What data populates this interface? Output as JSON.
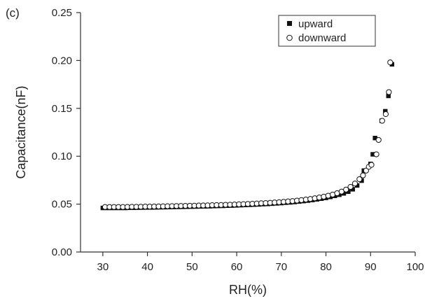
{
  "panel_label": "(c)",
  "chart_data": {
    "type": "scatter",
    "title": "",
    "xlabel": "RH(%)",
    "ylabel": "Capacitance(nF)",
    "xlim": [
      25,
      100
    ],
    "ylim": [
      0.0,
      0.25
    ],
    "x_ticks": [
      30,
      40,
      50,
      60,
      70,
      80,
      90,
      100
    ],
    "y_ticks": [
      0.0,
      0.05,
      0.1,
      0.15,
      0.2,
      0.25
    ],
    "x_tick_labels": [
      "30",
      "40",
      "50",
      "60",
      "70",
      "80",
      "90",
      "100"
    ],
    "y_tick_labels": [
      "0.00",
      "0.05",
      "0.10",
      "0.15",
      "0.20",
      "0.25"
    ],
    "grid": false,
    "legend_position": "top-right",
    "series": [
      {
        "name": "upward",
        "marker": "filled-square",
        "color": "#111111",
        "points": [
          [
            30,
            0.046
          ],
          [
            31,
            0.046
          ],
          [
            32,
            0.046
          ],
          [
            33,
            0.046
          ],
          [
            34,
            0.046
          ],
          [
            35,
            0.046
          ],
          [
            36,
            0.0462
          ],
          [
            37,
            0.0462
          ],
          [
            38,
            0.0463
          ],
          [
            39,
            0.0464
          ],
          [
            40,
            0.0465
          ],
          [
            41,
            0.0465
          ],
          [
            42,
            0.0466
          ],
          [
            43,
            0.0467
          ],
          [
            44,
            0.0468
          ],
          [
            45,
            0.0469
          ],
          [
            46,
            0.047
          ],
          [
            47,
            0.0471
          ],
          [
            48,
            0.0472
          ],
          [
            49,
            0.0473
          ],
          [
            50,
            0.0474
          ],
          [
            51,
            0.0475
          ],
          [
            52,
            0.0476
          ],
          [
            53,
            0.0477
          ],
          [
            54,
            0.0478
          ],
          [
            55,
            0.048
          ],
          [
            56,
            0.0481
          ],
          [
            57,
            0.0482
          ],
          [
            58,
            0.0484
          ],
          [
            59,
            0.0485
          ],
          [
            60,
            0.0487
          ],
          [
            61,
            0.0489
          ],
          [
            62,
            0.0491
          ],
          [
            63,
            0.0493
          ],
          [
            64,
            0.0495
          ],
          [
            65,
            0.0497
          ],
          [
            66,
            0.05
          ],
          [
            67,
            0.0502
          ],
          [
            68,
            0.0505
          ],
          [
            69,
            0.0508
          ],
          [
            70,
            0.0511
          ],
          [
            71,
            0.0515
          ],
          [
            72,
            0.0518
          ],
          [
            73,
            0.0522
          ],
          [
            74,
            0.0527
          ],
          [
            75,
            0.0532
          ],
          [
            76,
            0.0537
          ],
          [
            77,
            0.0543
          ],
          [
            78,
            0.055
          ],
          [
            79,
            0.0557
          ],
          [
            80,
            0.0565
          ],
          [
            81,
            0.0575
          ],
          [
            82,
            0.0586
          ],
          [
            83,
            0.0598
          ],
          [
            84,
            0.0612
          ],
          [
            85,
            0.063
          ],
          [
            86,
            0.0655
          ],
          [
            87,
            0.0695
          ],
          [
            88,
            0.0745
          ],
          [
            88.5,
            0.085
          ],
          [
            90,
            0.092
          ],
          [
            90.5,
            0.102
          ],
          [
            91,
            0.119
          ],
          [
            92.5,
            0.137
          ],
          [
            93.3,
            0.147
          ],
          [
            94,
            0.163
          ],
          [
            94.8,
            0.196
          ]
        ]
      },
      {
        "name": "downward",
        "marker": "open-circle",
        "color": "#111111",
        "points": [
          [
            30.5,
            0.047
          ],
          [
            31.5,
            0.047
          ],
          [
            32.5,
            0.047
          ],
          [
            33.5,
            0.047
          ],
          [
            34.5,
            0.047
          ],
          [
            35.5,
            0.0471
          ],
          [
            36.5,
            0.0472
          ],
          [
            37.5,
            0.0472
          ],
          [
            38.5,
            0.0473
          ],
          [
            39.5,
            0.0474
          ],
          [
            40.5,
            0.0474
          ],
          [
            41.5,
            0.0475
          ],
          [
            42.5,
            0.0476
          ],
          [
            43.5,
            0.0477
          ],
          [
            44.5,
            0.0478
          ],
          [
            45.5,
            0.0479
          ],
          [
            46.5,
            0.048
          ],
          [
            47.5,
            0.0481
          ],
          [
            48.5,
            0.0482
          ],
          [
            49.5,
            0.0483
          ],
          [
            50.5,
            0.0484
          ],
          [
            51.5,
            0.0485
          ],
          [
            52.5,
            0.0486
          ],
          [
            53.5,
            0.0487
          ],
          [
            54.5,
            0.0489
          ],
          [
            55.5,
            0.049
          ],
          [
            56.5,
            0.0491
          ],
          [
            57.5,
            0.0493
          ],
          [
            58.5,
            0.0494
          ],
          [
            59.5,
            0.0496
          ],
          [
            60.5,
            0.0498
          ],
          [
            61.5,
            0.05
          ],
          [
            62.5,
            0.0502
          ],
          [
            63.5,
            0.0504
          ],
          [
            64.5,
            0.0506
          ],
          [
            65.5,
            0.0509
          ],
          [
            66.5,
            0.0511
          ],
          [
            67.5,
            0.0514
          ],
          [
            68.5,
            0.0517
          ],
          [
            69.5,
            0.052
          ],
          [
            70.5,
            0.0524
          ],
          [
            71.5,
            0.0528
          ],
          [
            72.5,
            0.0532
          ],
          [
            73.5,
            0.0537
          ],
          [
            74.5,
            0.0542
          ],
          [
            75.5,
            0.0548
          ],
          [
            76.5,
            0.0554
          ],
          [
            77.5,
            0.0561
          ],
          [
            78.5,
            0.0569
          ],
          [
            79.5,
            0.0578
          ],
          [
            80.5,
            0.0588
          ],
          [
            81.5,
            0.06
          ],
          [
            82.5,
            0.0614
          ],
          [
            83.5,
            0.0631
          ],
          [
            84.5,
            0.0652
          ],
          [
            85.5,
            0.068
          ],
          [
            86.5,
            0.0715
          ],
          [
            87.5,
            0.076
          ],
          [
            88.3,
            0.08
          ],
          [
            89,
            0.085
          ],
          [
            89.6,
            0.089
          ],
          [
            90.2,
            0.091
          ],
          [
            91.3,
            0.102
          ],
          [
            91.8,
            0.117
          ],
          [
            92.6,
            0.137
          ],
          [
            93.4,
            0.144
          ],
          [
            94.1,
            0.167
          ],
          [
            94.4,
            0.198
          ]
        ]
      }
    ]
  }
}
